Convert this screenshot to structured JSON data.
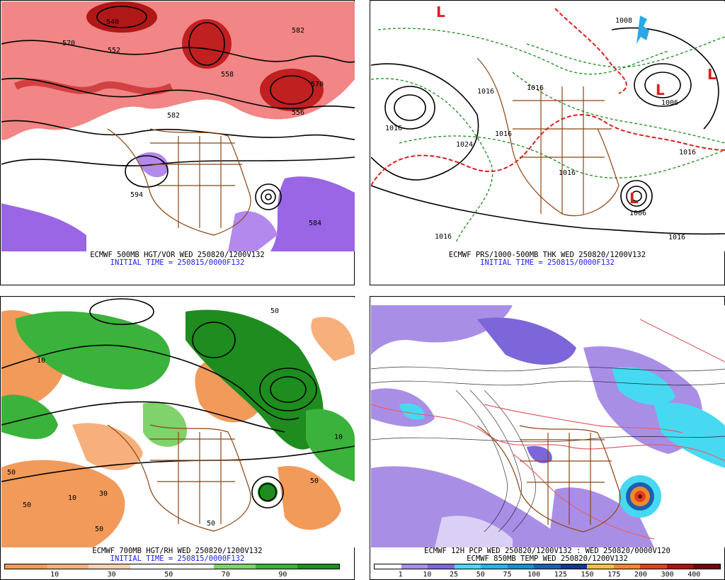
{
  "panels": {
    "top_left": {
      "title_line1": "ECMWF 500MB HGT/VOR WED 250820/1200V132",
      "title_line2": "INITIAL TIME = 250815/0000F132",
      "contour_labels": [
        "540",
        "570",
        "552",
        "582",
        "558",
        "570",
        "556",
        "582",
        "594",
        "584"
      ]
    },
    "top_right": {
      "title_line1": "ECMWF PRS/1000-500MB THK WED 250820/1200V132",
      "title_line2": "INITIAL TIME = 250815/0000F132",
      "contour_labels": [
        "1016",
        "1016",
        "1024",
        "1016",
        "1016",
        "1016",
        "1016",
        "1006",
        "1016",
        "1016",
        "1006",
        "1008"
      ]
    },
    "bottom_left": {
      "title_line1": "ECMWF 700MB HGT/RH WED 250820/1200V132",
      "title_line2": "INITIAL TIME = 250815/0000F132",
      "contour_labels": [
        "50",
        "50",
        "10",
        "50",
        "10",
        "50",
        "50",
        "10",
        "30",
        "50"
      ],
      "legend_ticks": [
        "10",
        "30",
        "50",
        "70",
        "90"
      ],
      "legend_colors": [
        "#f29a5a",
        "#f7b07c",
        "#fbd3b2",
        "#ffffff",
        "#ffffff",
        "#7fd36a",
        "#3bb23b",
        "#1e8c1e"
      ]
    },
    "bottom_right": {
      "title_line1": "ECMWF 12H PCP WED 250820/1200V132 : WED 250820/0000V120",
      "title_line2": "ECMWF 850MB TEMP WED 250820/1200V132",
      "legend_ticks": [
        "1",
        "10",
        "25",
        "50",
        "75",
        "100",
        "125",
        "150",
        "175",
        "200",
        "300",
        "400"
      ],
      "legend_colors": [
        "#ffffff",
        "#a98ee6",
        "#7c66d9",
        "#47d9f2",
        "#1fb6e8",
        "#1a8fd0",
        "#1a5fb0",
        "#0f3a8a",
        "#f2c23a",
        "#f08a28",
        "#e04020",
        "#b01010",
        "#700808"
      ]
    }
  }
}
